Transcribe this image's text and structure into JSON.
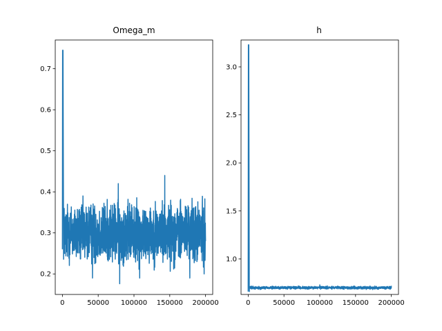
{
  "colors": {
    "line": "#1f77b4",
    "axes": "#000000",
    "background": "#ffffff"
  },
  "chart_data": [
    {
      "type": "line",
      "title": "Omega_m",
      "xlabel": "",
      "ylabel": "",
      "xlim": [
        -10000,
        210000
      ],
      "ylim": [
        0.15,
        0.77
      ],
      "grid": false,
      "xticks": [
        0,
        50000,
        100000,
        150000,
        200000
      ],
      "xtick_labels": [
        "0",
        "50000",
        "100000",
        "150000",
        "200000"
      ],
      "yticks": [
        0.2,
        0.3,
        0.4,
        0.5,
        0.6,
        0.7
      ],
      "ytick_labels": [
        "0.2",
        "0.3",
        "0.4",
        "0.5",
        "0.6",
        "0.7"
      ],
      "series": [
        {
          "name": "Omega_m",
          "trace": {
            "x_range": [
              0,
              200000
            ],
            "initial_points": [
              [
                0,
                0.26
              ],
              [
                300,
                0.745
              ],
              [
                800,
                0.745
              ],
              [
                1500,
                0.33
              ]
            ],
            "band_center": 0.3,
            "band_low": 0.2,
            "band_high": 0.4,
            "extremes": [
              [
                42000,
                0.19
              ],
              [
                80000,
                0.176
              ],
              [
                78000,
                0.42
              ],
              [
                108000,
                0.19
              ],
              [
                143000,
                0.44
              ],
              [
                178000,
                0.19
              ],
              [
                198000,
                0.2
              ],
              [
                200000,
                0.28
              ]
            ]
          }
        }
      ]
    },
    {
      "type": "line",
      "title": "h",
      "xlabel": "",
      "ylabel": "",
      "xlim": [
        -10000,
        210000
      ],
      "ylim": [
        0.63,
        3.28
      ],
      "grid": false,
      "xticks": [
        0,
        50000,
        100000,
        150000,
        200000
      ],
      "xtick_labels": [
        "0",
        "50000",
        "100000",
        "150000",
        "200000"
      ],
      "yticks": [
        1.0,
        1.5,
        2.0,
        2.5,
        3.0
      ],
      "ytick_labels": [
        "1.0",
        "1.5",
        "2.0",
        "2.5",
        "3.0"
      ],
      "series": [
        {
          "name": "h",
          "trace": {
            "x_range": [
              0,
              200000
            ],
            "initial_points": [
              [
                0,
                0.66
              ],
              [
                300,
                3.23
              ],
              [
                800,
                3.23
              ],
              [
                1500,
                0.7
              ]
            ],
            "band_center": 0.7,
            "band_low": 0.68,
            "band_high": 0.72,
            "extremes": [
              [
                0,
                0.66
              ],
              [
                100000,
                0.73
              ],
              [
                200000,
                0.72
              ]
            ]
          }
        }
      ]
    }
  ]
}
